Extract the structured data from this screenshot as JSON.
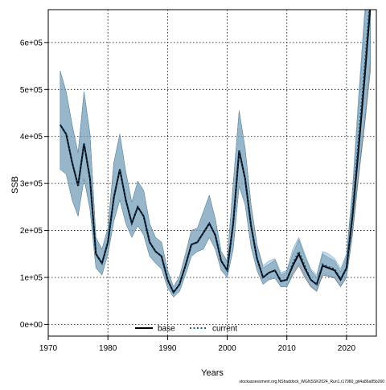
{
  "chart_data": {
    "type": "line",
    "xlabel": "Years",
    "ylabel": "SSB",
    "xlim": [
      1970,
      2025
    ],
    "ylim": [
      -25000,
      670000
    ],
    "x_ticks": [
      1970,
      1980,
      1990,
      2000,
      2010,
      2020
    ],
    "x_tick_labels": [
      "1970",
      "1980",
      "1990",
      "2000",
      "2010",
      "2020"
    ],
    "y_ticks": [
      0,
      100000,
      200000,
      300000,
      400000,
      500000,
      600000
    ],
    "y_tick_labels": [
      "0e+00",
      "1e+05",
      "2e+05",
      "3e+05",
      "4e+05",
      "5e+05",
      "6e+05"
    ],
    "grid": true,
    "legend_position": "bottom-center",
    "legend": [
      {
        "label": "base",
        "style": "solid",
        "color": "#000000"
      },
      {
        "label": "current",
        "style": "dotted",
        "color": "#1f5f8b"
      }
    ],
    "caption": "stockassessment.org,NShaddock_WGNSSK2024_Run1,r17980_git4a86a85b260",
    "x": [
      1972,
      1973,
      1974,
      1975,
      1976,
      1977,
      1978,
      1979,
      1980,
      1981,
      1982,
      1983,
      1984,
      1985,
      1986,
      1987,
      1988,
      1989,
      1990,
      1991,
      1992,
      1993,
      1994,
      1995,
      1996,
      1997,
      1998,
      1999,
      2000,
      2001,
      2002,
      2003,
      2004,
      2005,
      2006,
      2007,
      2008,
      2009,
      2010,
      2011,
      2012,
      2013,
      2014,
      2015,
      2016,
      2017,
      2018,
      2019,
      2020,
      2021,
      2022,
      2023,
      2024
    ],
    "series": [
      {
        "name": "base",
        "color": "#000000",
        "band_color": "#7f7f7f",
        "values": [
          425000,
          405000,
          345000,
          295000,
          385000,
          310000,
          150000,
          130000,
          175000,
          270000,
          330000,
          265000,
          215000,
          250000,
          230000,
          175000,
          155000,
          145000,
          95000,
          68000,
          85000,
          125000,
          170000,
          175000,
          195000,
          215000,
          190000,
          135000,
          115000,
          215000,
          370000,
          310000,
          210000,
          140000,
          100000,
          110000,
          115000,
          92000,
          95000,
          125000,
          150000,
          120000,
          95000,
          85000,
          125000,
          120000,
          115000,
          95000,
          120000,
          230000,
          370000,
          520000,
          680000
        ],
        "lower": [
          330000,
          320000,
          265000,
          230000,
          310000,
          245000,
          120000,
          105000,
          150000,
          220000,
          265000,
          215000,
          185000,
          210000,
          190000,
          145000,
          130000,
          118000,
          78000,
          58000,
          70000,
          105000,
          145000,
          155000,
          160000,
          185000,
          160000,
          115000,
          100000,
          160000,
          295000,
          255000,
          165000,
          115000,
          85000,
          95000,
          98000,
          80000,
          80000,
          105000,
          125000,
          100000,
          80000,
          70000,
          105000,
          102000,
          98000,
          80000,
          100000,
          190000,
          310000,
          420000,
          540000
        ],
        "upper": [
          540000,
          495000,
          425000,
          365000,
          495000,
          405000,
          185000,
          160000,
          205000,
          345000,
          405000,
          325000,
          260000,
          305000,
          285000,
          215000,
          185000,
          175000,
          115000,
          80000,
          102000,
          150000,
          200000,
          205000,
          240000,
          275000,
          225000,
          155000,
          135000,
          300000,
          455000,
          375000,
          255000,
          170000,
          120000,
          128000,
          137000,
          105000,
          112000,
          150000,
          180000,
          145000,
          115000,
          100000,
          150000,
          142000,
          135000,
          112000,
          145000,
          275000,
          460000,
          640000,
          820000
        ]
      },
      {
        "name": "current",
        "color": "#0a3d62",
        "band_color": "#6eb4df",
        "values": [
          425000,
          405000,
          345000,
          295000,
          385000,
          310000,
          150000,
          130000,
          175000,
          270000,
          330000,
          265000,
          215000,
          250000,
          230000,
          175000,
          155000,
          145000,
          95000,
          68000,
          85000,
          125000,
          170000,
          175000,
          195000,
          215000,
          190000,
          135000,
          115000,
          215000,
          370000,
          310000,
          210000,
          140000,
          100000,
          110000,
          115000,
          92000,
          95000,
          130000,
          155000,
          125000,
          95000,
          85000,
          128000,
          122000,
          118000,
          97000,
          120000,
          240000,
          390000,
          540000,
          700000
        ],
        "lower": [
          330000,
          320000,
          265000,
          230000,
          310000,
          245000,
          120000,
          105000,
          150000,
          220000,
          265000,
          215000,
          185000,
          210000,
          190000,
          145000,
          130000,
          118000,
          78000,
          58000,
          70000,
          105000,
          145000,
          155000,
          160000,
          185000,
          160000,
          115000,
          100000,
          160000,
          295000,
          255000,
          165000,
          115000,
          85000,
          95000,
          98000,
          80000,
          80000,
          110000,
          130000,
          105000,
          82000,
          72000,
          108000,
          104000,
          100000,
          82000,
          102000,
          200000,
          320000,
          430000,
          560000
        ],
        "upper": [
          540000,
          495000,
          425000,
          365000,
          495000,
          405000,
          185000,
          160000,
          205000,
          345000,
          405000,
          325000,
          260000,
          305000,
          285000,
          215000,
          185000,
          175000,
          115000,
          80000,
          102000,
          150000,
          200000,
          205000,
          240000,
          275000,
          225000,
          155000,
          135000,
          300000,
          455000,
          375000,
          255000,
          170000,
          125000,
          135000,
          140000,
          110000,
          115000,
          160000,
          185000,
          150000,
          118000,
          105000,
          155000,
          150000,
          140000,
          118000,
          150000,
          290000,
          480000,
          660000,
          850000
        ]
      }
    ]
  }
}
